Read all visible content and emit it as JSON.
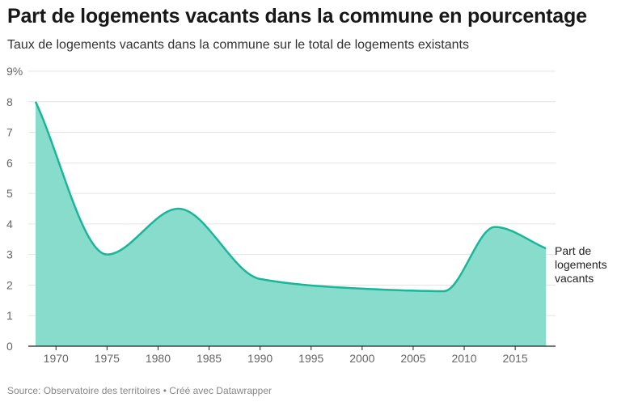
{
  "chart_data": {
    "type": "area",
    "title": "Part de logements vacants dans la commune en pourcentage",
    "subtitle": "Taux de logements vacants dans la commune sur le total de logements existants",
    "source": "Source: Observatoire des territoires • Créé avec Datawrapper",
    "x": [
      1968,
      1975,
      1982,
      1990,
      1999,
      2008,
      2013,
      2018
    ],
    "series": [
      {
        "name": "Part de logements vacants",
        "values": [
          8.0,
          3.0,
          4.5,
          2.2,
          1.9,
          1.8,
          3.9,
          3.2
        ]
      }
    ],
    "xlim": [
      1968,
      2018
    ],
    "ylim": [
      0,
      9
    ],
    "x_ticks": [
      1970,
      1975,
      1980,
      1985,
      1990,
      1995,
      2000,
      2005,
      2010,
      2015
    ],
    "y_ticks": [
      0,
      1,
      2,
      3,
      4,
      5,
      6,
      7,
      8,
      9
    ],
    "y_tick_labels": [
      "0",
      "1",
      "2",
      "3",
      "4",
      "5",
      "6",
      "7",
      "8",
      "9%"
    ],
    "series_label_lines": [
      "Part de",
      "logements",
      "vacants"
    ],
    "grid": true,
    "colors": {
      "line": "#1bb59a",
      "fill": "#88dccc",
      "grid": "#e4e4e4",
      "axis": "#222222"
    }
  }
}
